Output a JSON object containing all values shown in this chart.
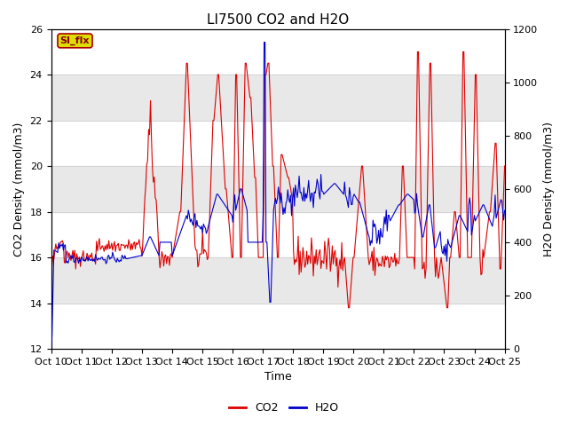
{
  "title": "LI7500 CO2 and H2O",
  "xlabel": "Time",
  "ylabel_left": "CO2 Density (mmol/m3)",
  "ylabel_right": "H2O Density (mmol/m3)",
  "ylim_left": [
    12,
    26
  ],
  "ylim_right": [
    0,
    1200
  ],
  "yticks_left": [
    12,
    14,
    16,
    18,
    20,
    22,
    24,
    26
  ],
  "yticks_right": [
    0,
    200,
    400,
    600,
    800,
    1000,
    1200
  ],
  "xtick_labels": [
    "Oct 10",
    "Oct 11",
    "Oct 12",
    "Oct 13",
    "Oct 14",
    "Oct 15",
    "Oct 16",
    "Oct 17",
    "Oct 18",
    "Oct 19",
    "Oct 20",
    "Oct 21",
    "Oct 22",
    "Oct 23",
    "Oct 24",
    "Oct 25"
  ],
  "co2_color": "#dd0000",
  "h2o_color": "#0000cc",
  "annotation_text": "SI_flx",
  "annotation_bg": "#dddd00",
  "annotation_border": "#aa0000",
  "annotation_text_color": "#880000",
  "legend_co2": "CO2",
  "legend_h2o": "H2O",
  "background_color": "#ffffff",
  "band_color": "#e8e8e8",
  "title_fontsize": 11,
  "axis_label_fontsize": 9,
  "tick_fontsize": 8
}
